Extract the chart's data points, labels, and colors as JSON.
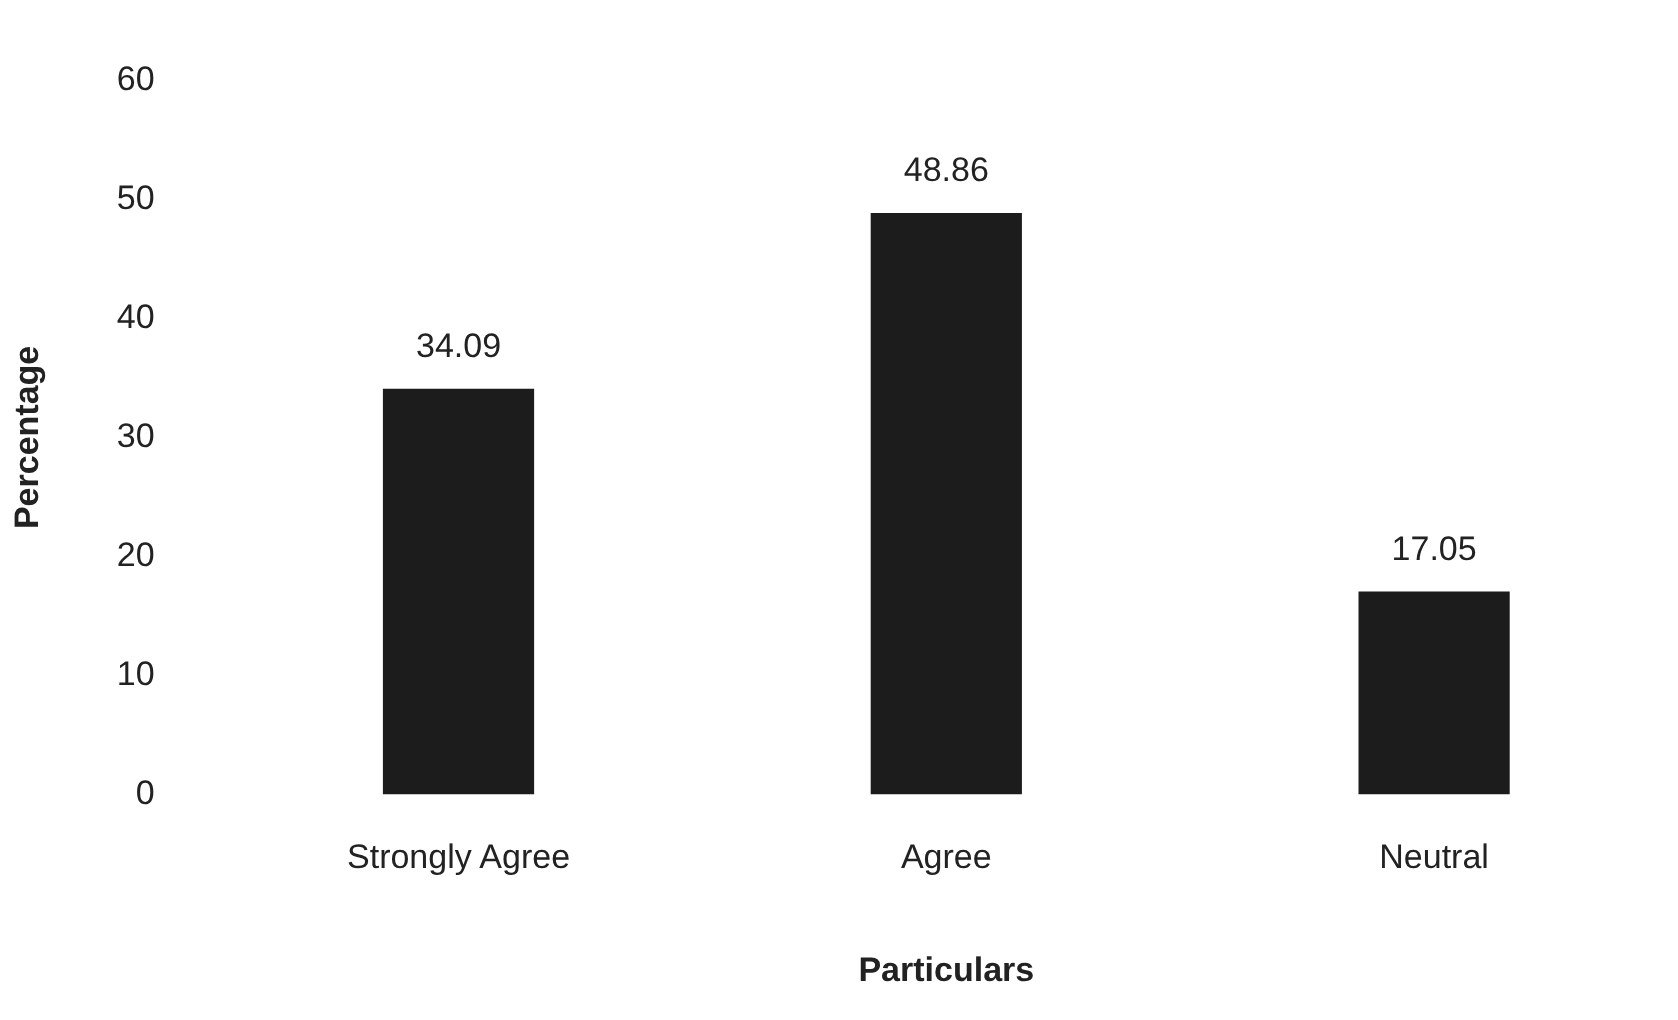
{
  "chart_data": {
    "type": "bar",
    "xlabel": "Particulars",
    "ylabel": "Percentage",
    "categories": [
      "Strongly Agree",
      "Agree",
      "Neutral"
    ],
    "values": [
      34.09,
      48.86,
      17.05
    ],
    "color": "#1c1c1c",
    "ylim": [
      0,
      60
    ],
    "yticks": [
      0,
      10,
      20,
      30,
      40,
      50,
      60
    ],
    "grid": false,
    "legend": false,
    "data_labels": true
  }
}
